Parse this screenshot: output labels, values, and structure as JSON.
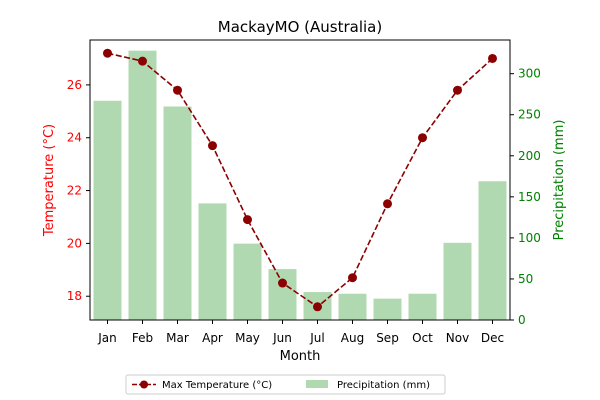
{
  "chart_data": {
    "type": "bar+line",
    "title": "MackayMO (Australia)",
    "xlabel": "Month",
    "categories": [
      "Jan",
      "Feb",
      "Mar",
      "Apr",
      "May",
      "Jun",
      "Jul",
      "Aug",
      "Sep",
      "Oct",
      "Nov",
      "Dec"
    ],
    "left_axis": {
      "label": "Temperature (°C)",
      "ticks": [
        18,
        20,
        22,
        24,
        26
      ],
      "ylim": [
        17.1,
        27.7
      ],
      "color": "#ff0000"
    },
    "right_axis": {
      "label": "Precipitation (mm)",
      "ticks": [
        0,
        50,
        100,
        150,
        200,
        250,
        300
      ],
      "ylim": [
        0,
        341
      ],
      "color": "#008000"
    },
    "series": [
      {
        "name": "Max Temperature (°C)",
        "kind": "line",
        "axis": "left",
        "color": "#8b0000",
        "values": [
          27.2,
          26.9,
          25.8,
          23.7,
          20.9,
          18.5,
          17.6,
          18.7,
          21.5,
          24.0,
          25.8,
          27.0
        ]
      },
      {
        "name": "Precipitation (mm)",
        "kind": "bar",
        "axis": "right",
        "color": "#b0d9b1",
        "values": [
          267,
          328,
          260,
          142,
          93,
          62,
          34,
          32,
          26,
          32,
          94,
          169
        ]
      }
    ],
    "legend": {
      "position": "bottom-center",
      "columns": 2
    }
  }
}
